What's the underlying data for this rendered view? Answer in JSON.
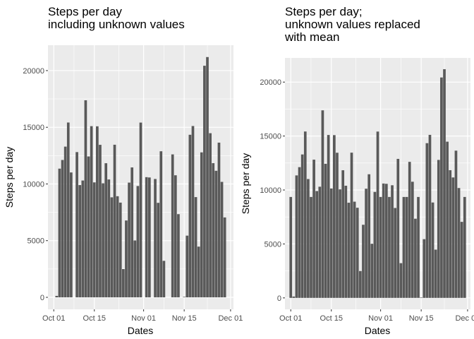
{
  "chart_data": [
    {
      "type": "bar",
      "title_lines": [
        "Steps per day",
        "including unknown values"
      ],
      "xlabel": "Dates",
      "ylabel": "Steps per day",
      "x_domain": [
        "2012-09-29",
        "2012-12-02"
      ],
      "x_ticks": [
        {
          "date": "2012-10-01",
          "label": "Oct 01"
        },
        {
          "date": "2012-10-15",
          "label": "Oct 15"
        },
        {
          "date": "2012-11-01",
          "label": "Nov 01"
        },
        {
          "date": "2012-11-15",
          "label": "Nov 15"
        },
        {
          "date": "2012-12-01",
          "label": "Dec 01"
        }
      ],
      "ylim": [
        -1060,
        22240
      ],
      "y_ticks": [
        0,
        5000,
        10000,
        15000,
        20000
      ],
      "y_tick_labels": [
        "0",
        "5000",
        "10000",
        "15000",
        "20000"
      ],
      "grid": true,
      "bar_color": "#595959",
      "start_date": "2012-10-01",
      "values": [
        0,
        126,
        11352,
        12116,
        13294,
        15420,
        11015,
        0,
        12811,
        9900,
        10304,
        17382,
        12426,
        15098,
        10139,
        15084,
        13452,
        10056,
        11829,
        10395,
        8821,
        13460,
        8918,
        8355,
        2492,
        6778,
        10119,
        11458,
        5018,
        9819,
        15414,
        0,
        10600,
        10571,
        0,
        10439,
        8334,
        12883,
        3219,
        0,
        0,
        12608,
        10765,
        7336,
        0,
        41,
        5441,
        14339,
        15110,
        8841,
        4472,
        12787,
        20427,
        21194,
        14478,
        11834,
        11162,
        13646,
        10183,
        7047,
        0
      ]
    },
    {
      "type": "bar",
      "title_lines": [
        "Steps per day;",
        "unknown values replaced",
        "with mean"
      ],
      "xlabel": "Dates",
      "ylabel": "Steps per day",
      "x_domain": [
        "2012-09-29",
        "2012-12-02"
      ],
      "x_ticks": [
        {
          "date": "2012-10-01",
          "label": "Oct 01"
        },
        {
          "date": "2012-10-15",
          "label": "Oct 15"
        },
        {
          "date": "2012-11-01",
          "label": "Nov 01"
        },
        {
          "date": "2012-11-15",
          "label": "Nov 15"
        },
        {
          "date": "2012-12-01",
          "label": "Dec 01"
        }
      ],
      "ylim": [
        -1060,
        22240
      ],
      "y_ticks": [
        0,
        5000,
        10000,
        15000,
        20000
      ],
      "y_tick_labels": [
        "0",
        "5000",
        "10000",
        "15000",
        "20000"
      ],
      "grid": true,
      "bar_color": "#595959",
      "start_date": "2012-10-01",
      "values": [
        9354,
        126,
        11352,
        12116,
        13294,
        15420,
        11015,
        9354,
        12811,
        9900,
        10304,
        17382,
        12426,
        15098,
        10139,
        15084,
        13452,
        10056,
        11829,
        10395,
        8821,
        13460,
        8918,
        8355,
        2492,
        6778,
        10119,
        11458,
        5018,
        9819,
        15414,
        9354,
        10600,
        10571,
        9354,
        10439,
        8334,
        12883,
        3219,
        9354,
        9354,
        12608,
        10765,
        7336,
        9354,
        41,
        5441,
        14339,
        15110,
        8841,
        4472,
        12787,
        20427,
        21194,
        14478,
        11834,
        11162,
        13646,
        10183,
        7047,
        9354
      ]
    }
  ]
}
